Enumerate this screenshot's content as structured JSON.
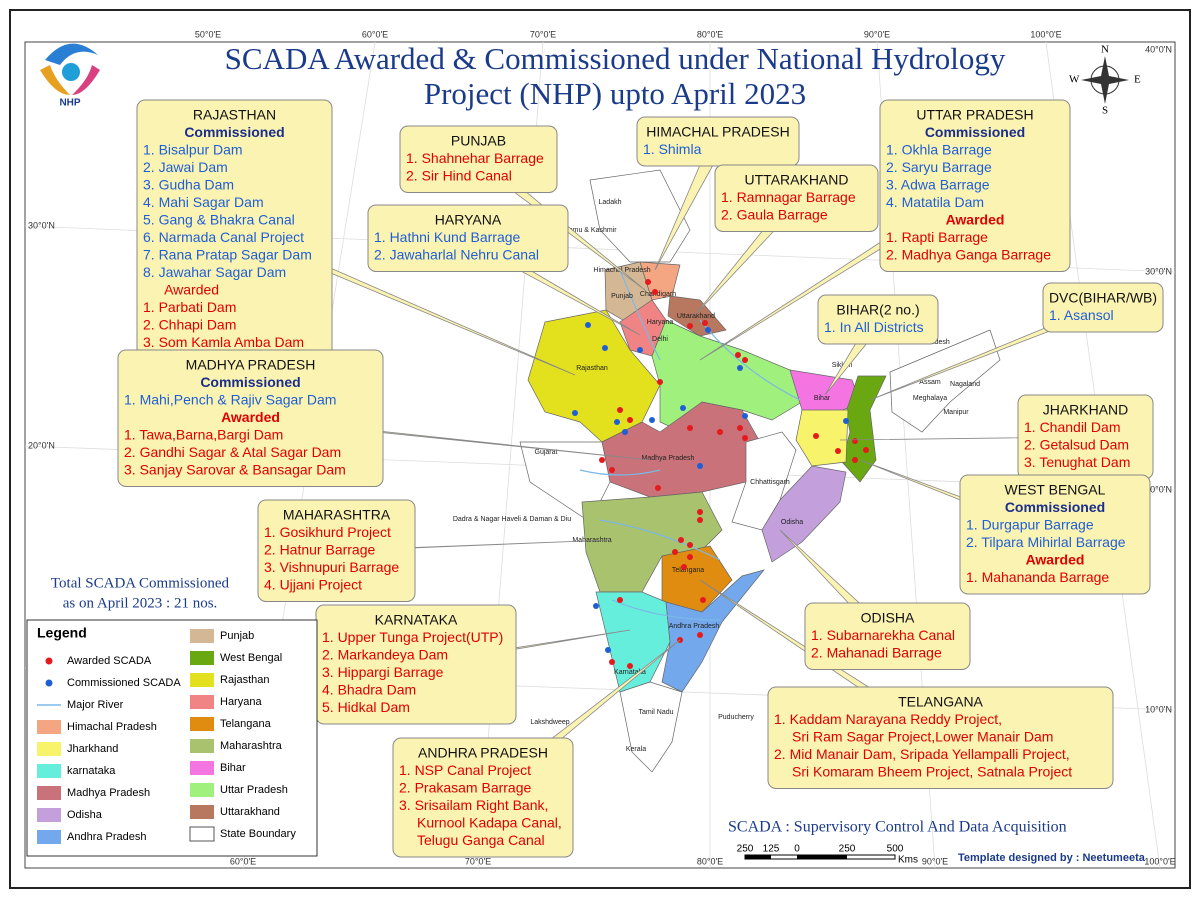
{
  "title": [
    "SCADA  Awarded & Commissioned under National Hydrology",
    "Project (NHP) upto April 2023"
  ],
  "logo": "NHP",
  "compass": {
    "n": "N",
    "e": "E",
    "s": "S",
    "w": "W"
  },
  "graticule": {
    "top": [
      "50°0'E",
      "60°0'E",
      "70°0'E",
      "80°0'E",
      "90°0'E",
      "100°0'E"
    ],
    "bottom": [
      "60°0'E",
      "70°0'E",
      "80°0'E",
      "90°0'E",
      "100°0'E"
    ],
    "left": [
      "30°0'N",
      "20°0'N",
      "10°0'N"
    ],
    "right": [
      "40°0'N",
      "30°0'N",
      "20°0'N",
      "10°0'N"
    ]
  },
  "callouts": [
    {
      "title": "RAJASTHAN",
      "groups": [
        {
          "heading": "Commissioned",
          "status": "commissioned",
          "items": [
            "1. Bisalpur Dam",
            "2. Jawai Dam",
            "3. Gudha Dam",
            "4. Mahi Sagar Dam",
            "5. Gang & Bhakra Canal",
            "6. Narmada Canal Project",
            "7. Rana Pratap Sagar Dam",
            "8. Jawahar Sagar Dam"
          ]
        },
        {
          "heading": "Awarded",
          "status": "awarded-plain",
          "items": [
            "1. Parbati Dam",
            "2. Chhapi Dam",
            "3. Som Kamla Amba Dam"
          ]
        }
      ]
    },
    {
      "title": "PUNJAB",
      "groups": [
        {
          "status": "awarded",
          "items": [
            "1. Shahnehar Barrage",
            "2. Sir Hind Canal"
          ]
        }
      ]
    },
    {
      "title": "HIMACHAL PRADESH",
      "groups": [
        {
          "status": "commissioned",
          "items": [
            "1. Shimla"
          ]
        }
      ]
    },
    {
      "title": "UTTARAKHAND",
      "groups": [
        {
          "status": "awarded",
          "items": [
            "1. Ramnagar Barrage",
            "2. Gaula Barrage"
          ]
        }
      ]
    },
    {
      "title": "HARYANA",
      "groups": [
        {
          "status": "commissioned",
          "items": [
            "1. Hathni Kund Barrage",
            "2. Jawaharlal Nehru Canal"
          ]
        }
      ]
    },
    {
      "title": "UTTAR PRADESH",
      "groups": [
        {
          "heading": "Commissioned",
          "status": "commissioned",
          "items": [
            "1. Okhla Barrage",
            "2. Saryu Barrage",
            "3. Adwa Barrage",
            "4. Matatila Dam"
          ]
        },
        {
          "heading": "Awarded",
          "status": "awarded",
          "items": [
            "1. Rapti Barrage",
            "2. Madhya Ganga Barrage"
          ]
        }
      ]
    },
    {
      "title": "BIHAR(2 no.)",
      "groups": [
        {
          "status": "commissioned",
          "items": [
            "1. In All Districts"
          ]
        }
      ]
    },
    {
      "title": "DVC(BIHAR/WB)",
      "groups": [
        {
          "status": "commissioned",
          "items": [
            "1. Asansol"
          ]
        }
      ]
    },
    {
      "title": "MADHYA PRADESH",
      "groups": [
        {
          "heading": "Commissioned",
          "status": "commissioned",
          "items": [
            "1. Mahi,Pench & Rajiv Sagar Dam"
          ]
        },
        {
          "heading": "Awarded",
          "status": "awarded",
          "items": [
            "1. Tawa,Barna,Bargi Dam",
            "2. Gandhi Sagar & Atal Sagar Dam",
            "3. Sanjay Sarovar & Bansagar Dam"
          ]
        }
      ]
    },
    {
      "title": "JHARKHAND",
      "groups": [
        {
          "status": "awarded",
          "items": [
            "1. Chandil Dam",
            "2. Getalsud Dam",
            "3. Tenughat Dam"
          ]
        }
      ]
    },
    {
      "title": "WEST BENGAL",
      "groups": [
        {
          "heading": "Commissioned",
          "status": "commissioned",
          "items": [
            "1. Durgapur Barrage",
            "2. Tilpara Mihirlal Barrage"
          ]
        },
        {
          "heading": "Awarded",
          "status": "awarded",
          "items": [
            "1. Mahananda Barrage"
          ]
        }
      ]
    },
    {
      "title": "MAHARASHTRA",
      "groups": [
        {
          "status": "awarded",
          "items": [
            "1. Gosikhurd Project",
            "2. Hatnur  Barrage",
            "3. Vishnupuri Barrage",
            "4. Ujjani Project"
          ]
        }
      ]
    },
    {
      "title": "KARNATAKA",
      "groups": [
        {
          "status": "awarded",
          "items": [
            "1. Upper Tunga Project(UTP)",
            "2. Markandeya Dam",
            "3. Hippargi Barrage",
            "4. Bhadra Dam",
            "5. Hidkal Dam"
          ]
        }
      ]
    },
    {
      "title": "ODISHA",
      "groups": [
        {
          "status": "awarded",
          "items": [
            "1. Subarnarekha Canal",
            "2. Mahanadi Barrage"
          ]
        }
      ]
    },
    {
      "title": "TELANGANA",
      "groups": [
        {
          "status": "awarded",
          "items": [
            "1. Kaddam Narayana Reddy Project,",
            "Sri Ram Sagar Project,Lower Manair Dam",
            "2. Mid Manair Dam, Sripada Yellampalli Project,",
            "Sri Komaram Bheem Project, Satnala Project"
          ]
        }
      ]
    },
    {
      "title": "ANDHRA PRADESH",
      "groups": [
        {
          "status": "awarded",
          "items": [
            "1. NSP Canal Project",
            "2. Prakasam Barrage",
            "3. Srisailam Right Bank,",
            "Kurnool Kadapa Canal,",
            "Telugu Ganga Canal"
          ]
        }
      ]
    }
  ],
  "total": [
    "Total SCADA Commissioned",
    "as on April 2023 : 21 nos."
  ],
  "legend": {
    "title": "Legend",
    "items": [
      {
        "label": "Awarded SCADA",
        "kind": "dot",
        "color": "#e41a1c"
      },
      {
        "label": "Commissioned SCADA",
        "kind": "dot",
        "color": "#1f5fd6"
      },
      {
        "label": "Major River",
        "kind": "line",
        "color": "#7ab8e8"
      },
      {
        "label": "Himachal Pradesh",
        "kind": "area",
        "color": "#f4a582"
      },
      {
        "label": "Jharkhand",
        "kind": "area",
        "color": "#f7f36a"
      },
      {
        "label": "karnataka",
        "kind": "area",
        "color": "#66eedc"
      },
      {
        "label": "Madhya Pradesh",
        "kind": "area",
        "color": "#c9727a"
      },
      {
        "label": "Odisha",
        "kind": "area",
        "color": "#c3a0dc"
      },
      {
        "label": "Andhra Pradesh",
        "kind": "area",
        "color": "#73a9ec"
      },
      {
        "label": "Punjab",
        "kind": "area",
        "color": "#d4b896"
      },
      {
        "label": "West Bengal",
        "kind": "area",
        "color": "#6aa812"
      },
      {
        "label": "Rajasthan",
        "kind": "area",
        "color": "#e3e11e"
      },
      {
        "label": "Haryana",
        "kind": "area",
        "color": "#f08484"
      },
      {
        "label": "Telangana",
        "kind": "area",
        "color": "#e08c10"
      },
      {
        "label": "Maharashtra",
        "kind": "area",
        "color": "#a9c26e"
      },
      {
        "label": "Bihar",
        "kind": "area",
        "color": "#f474e2"
      },
      {
        "label": "Uttar Pradesh",
        "kind": "area",
        "color": "#a0f07e"
      },
      {
        "label": "Uttarakhand",
        "kind": "area",
        "color": "#b87860"
      },
      {
        "label": "State Boundary",
        "kind": "area",
        "color": "#ffffff"
      }
    ]
  },
  "map_labels": [
    "Ladakh",
    "Jammu & Kashmir",
    "Himachal Pradesh",
    "Punjab",
    "Chandigarh",
    "Haryana",
    "Uttarakhand",
    "Delhi",
    "Rajasthan",
    "Bihar",
    "Sikkim",
    "Arunachal Pradesh",
    "Assam",
    "Nagaland",
    "Meghalaya",
    "Manipur",
    "Gujarat",
    "Madhya Pradesh",
    "Chhattisgarh",
    "Odisha",
    "Dadra & Nagar Haveli & Daman & Diu",
    "Maharashtra",
    "Telangana",
    "Andhra Pradesh",
    "Karnataka",
    "Lakshdweep",
    "Tamil Nadu",
    "Puducherry",
    "Kerala"
  ],
  "scale": {
    "ticks": [
      "250",
      "125",
      "0",
      "250",
      "500"
    ],
    "unit": "Kms"
  },
  "footer": {
    "definition": "SCADA : Supervisory Control And Data Acquisition",
    "credit": "Template designed by : Neetumeeta"
  }
}
